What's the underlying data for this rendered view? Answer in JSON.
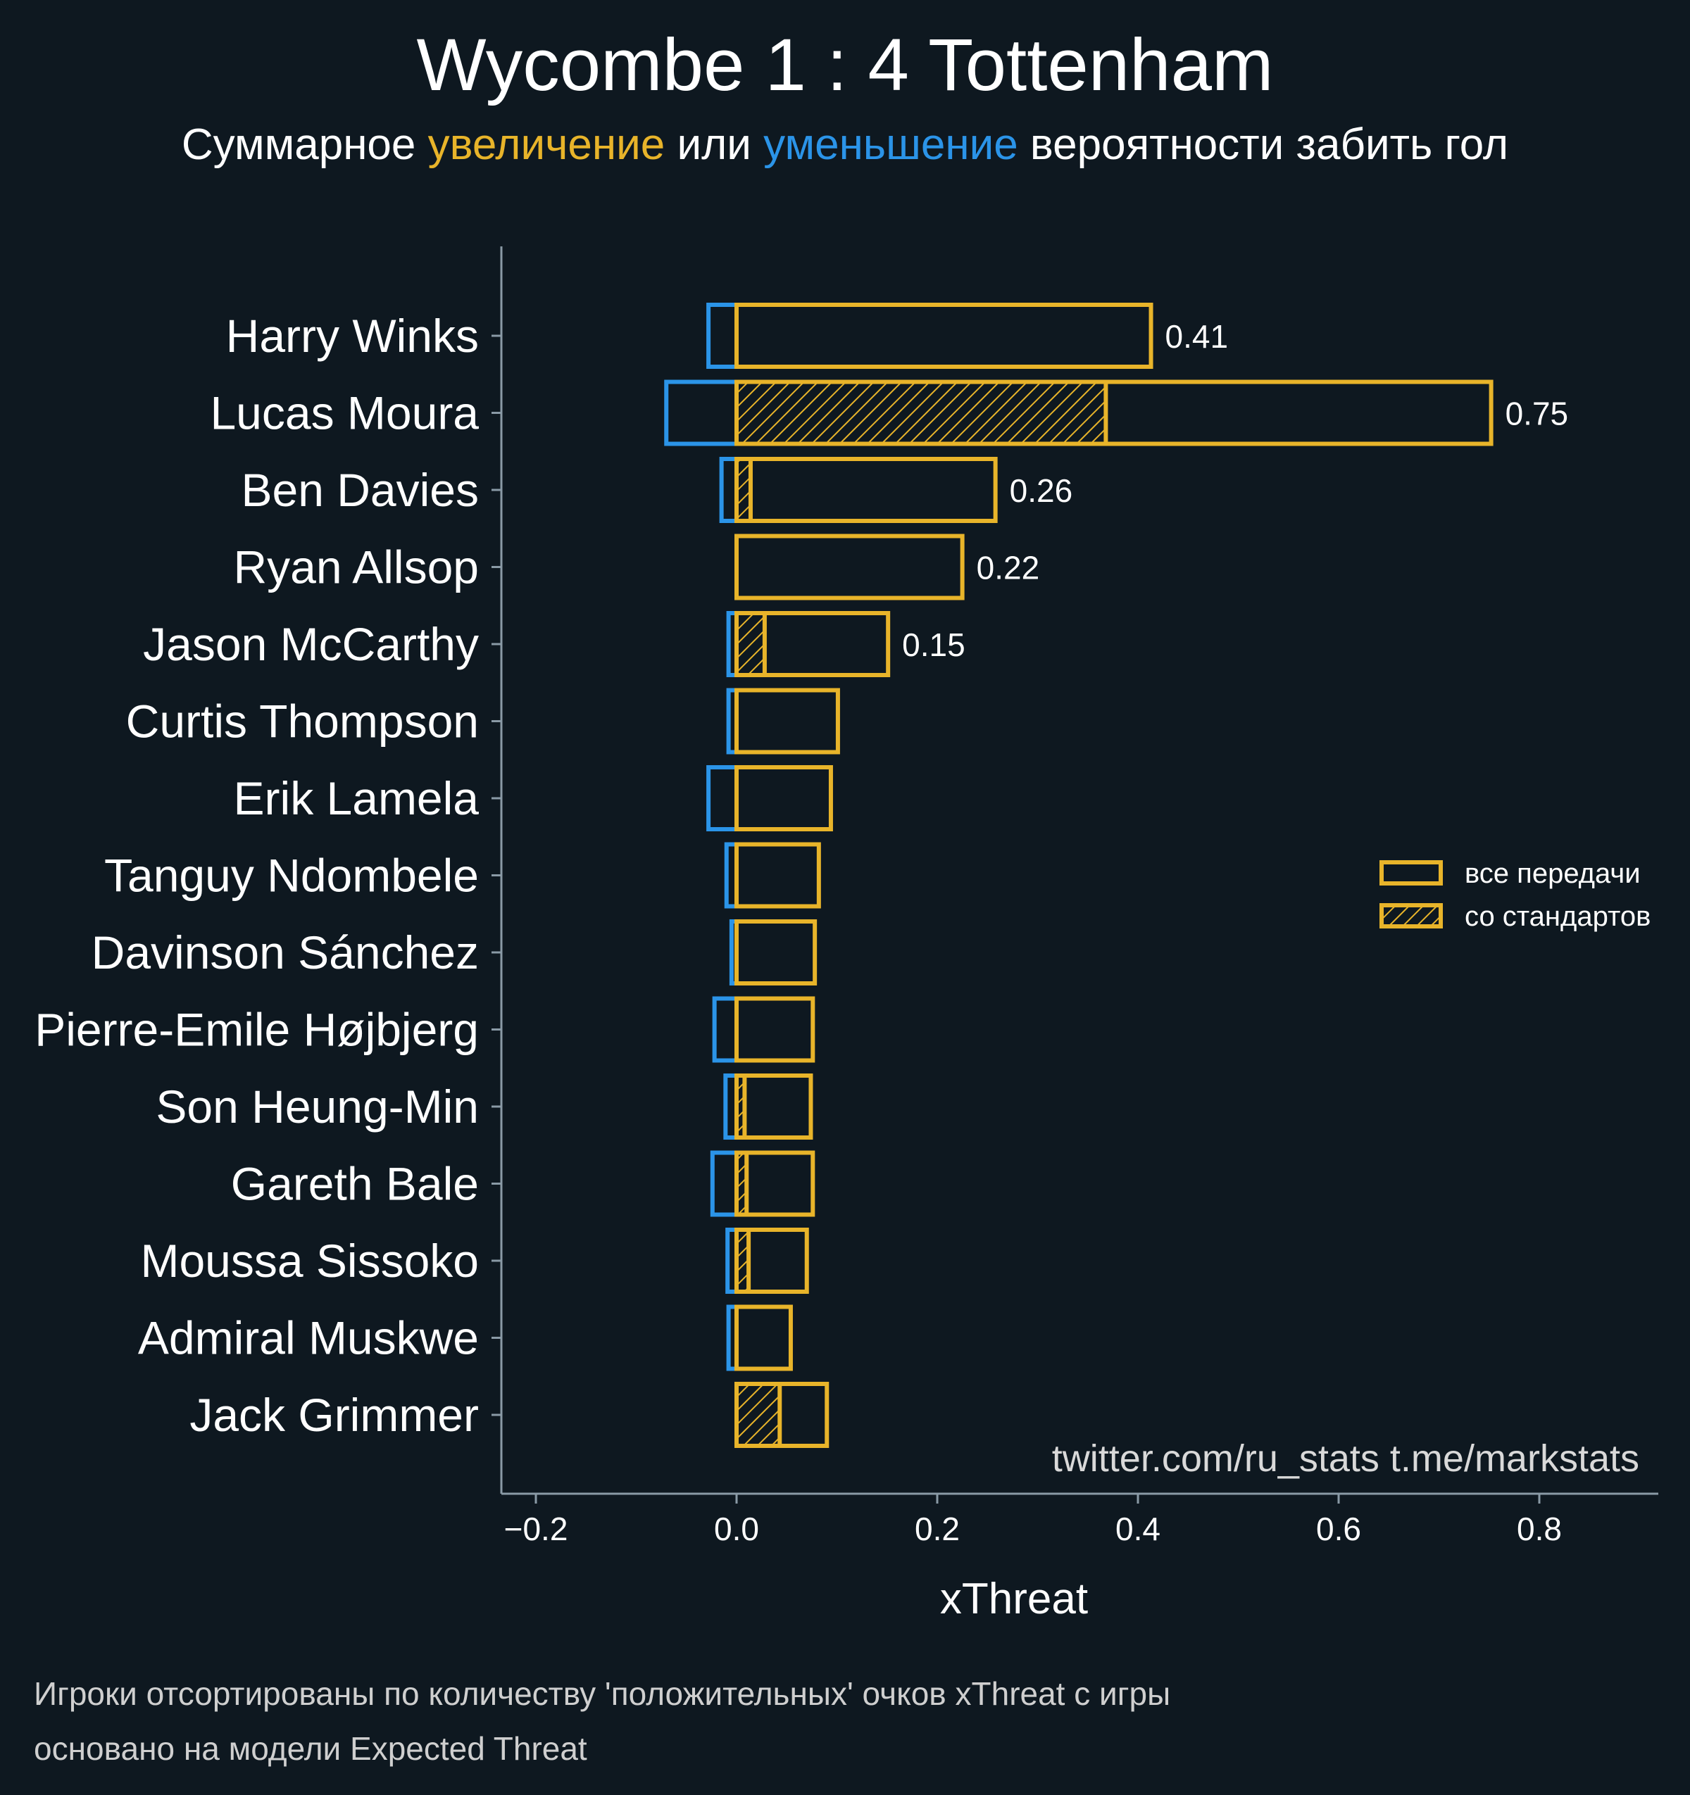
{
  "header": {
    "title": "Wycombe 1 : 4 Tottenham",
    "subtitle_parts": [
      {
        "text": "Суммарное ",
        "color": "#ffffff"
      },
      {
        "text": "увеличение",
        "color": "#e8b42a"
      },
      {
        "text": " или ",
        "color": "#ffffff"
      },
      {
        "text": "уменьшение",
        "color": "#2b94e8"
      },
      {
        "text": " вероятности забить гол",
        "color": "#ffffff"
      }
    ]
  },
  "colors": {
    "background": "#0e1820",
    "positive": "#e8b42a",
    "negative": "#2b94e8",
    "axis": "#8a9aa6"
  },
  "chart_data": {
    "type": "bar",
    "orientation": "horizontal",
    "categories": [
      "Harry Winks",
      "Lucas Moura",
      "Ben Davies",
      "Ryan Allsop",
      "Jason McCarthy",
      "Curtis Thompson",
      "Erik Lamela",
      "Tanguy Ndombele",
      "Davinson Sánchez",
      "Pierre-Emile Højbjerg",
      "Son Heung-Min",
      "Gareth Bale",
      "Moussa Sissoko",
      "Admiral Muskwe",
      "Jack Grimmer"
    ],
    "series": [
      {
        "name": "все передачи",
        "values": [
          0.413,
          0.752,
          0.258,
          0.225,
          0.151,
          0.101,
          0.094,
          0.082,
          0.078,
          0.076,
          0.074,
          0.076,
          0.07,
          0.054,
          0.09
        ]
      },
      {
        "name": "со стандартов",
        "values": [
          0.0,
          0.368,
          0.014,
          0.0,
          0.028,
          0.0,
          0.0,
          0.0,
          0.0,
          0.0,
          0.008,
          0.01,
          0.012,
          0.0,
          0.043
        ]
      }
    ],
    "negative_values": [
      -0.028,
      -0.07,
      -0.015,
      0.0,
      -0.008,
      -0.008,
      -0.028,
      -0.01,
      -0.005,
      -0.022,
      -0.011,
      -0.024,
      -0.009,
      -0.008,
      0.0
    ],
    "value_labels": [
      "0.41",
      "0.75",
      "0.26",
      "0.22",
      "0.15",
      "",
      "",
      "",
      "",
      "",
      "",
      "",
      "",
      "",
      ""
    ],
    "xlabel": "xThreat",
    "xlim": [
      -0.2,
      0.9
    ],
    "xticks": [
      -0.2,
      0.0,
      0.2,
      0.4,
      0.6,
      0.8
    ],
    "xtick_labels": [
      "−0.2",
      "0.0",
      "0.2",
      "0.4",
      "0.6",
      "0.8"
    ],
    "legend": {
      "placement": "right",
      "entries": [
        {
          "label": "все передачи",
          "hatched": false
        },
        {
          "label": "со стандартов",
          "hatched": true
        }
      ]
    },
    "grid": false
  },
  "watermark": "twitter.com/ru_stats  t.me/markstats",
  "footnotes": [
    "Игроки отсортированы по количеству 'положительных' очков xThreat с игры",
    "основано на модели Expected Threat"
  ]
}
